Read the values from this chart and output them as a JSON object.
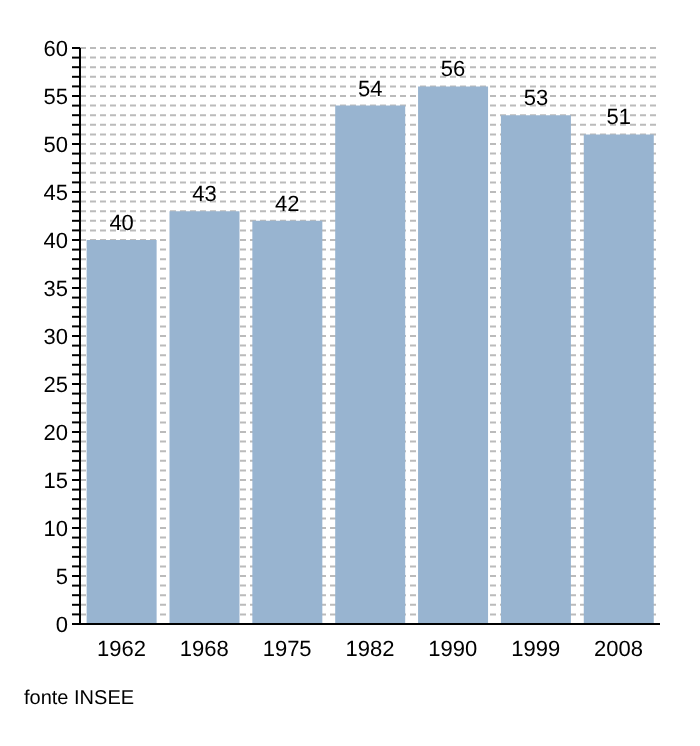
{
  "chart_data": {
    "type": "bar",
    "categories": [
      "1962",
      "1968",
      "1975",
      "1982",
      "1990",
      "1999",
      "2008"
    ],
    "values": [
      40,
      43,
      42,
      54,
      56,
      53,
      51
    ],
    "color": "#98b4d0",
    "data_labels": true,
    "grid": "y",
    "ylim": [
      0,
      60
    ],
    "yticks": [
      0,
      {
        "value": 1,
        "label": null
      },
      {
        "value": 2,
        "label": null
      },
      {
        "value": 3,
        "label": null
      },
      {
        "value": 4,
        "label": null
      },
      5,
      {
        "value": 6,
        "label": null
      },
      {
        "value": 7,
        "label": null
      },
      {
        "value": 8,
        "label": null
      },
      {
        "value": 9,
        "label": null
      },
      10,
      {
        "value": 11,
        "label": null
      },
      {
        "value": 12,
        "label": null
      },
      {
        "value": 13,
        "label": null
      },
      {
        "value": 14,
        "label": null
      },
      15,
      {
        "value": 16,
        "label": null
      },
      {
        "value": 17,
        "label": null
      },
      {
        "value": 18,
        "label": null
      },
      {
        "value": 19,
        "label": null
      },
      20,
      {
        "value": 21,
        "label": null
      },
      {
        "value": 22,
        "label": null
      },
      {
        "value": 23,
        "label": null
      },
      {
        "value": 24,
        "label": null
      },
      25,
      {
        "value": 26,
        "label": null
      },
      {
        "value": 27,
        "label": null
      },
      {
        "value": 28,
        "label": null
      },
      {
        "value": 29,
        "label": null
      },
      30,
      {
        "value": 31,
        "label": null
      },
      {
        "value": 32,
        "label": null
      },
      {
        "value": 33,
        "label": null
      },
      {
        "value": 34,
        "label": null
      },
      35,
      {
        "value": 36,
        "label": null
      },
      {
        "value": 37,
        "label": null
      },
      {
        "value": 38,
        "label": null
      },
      {
        "value": 39,
        "label": null
      },
      40,
      {
        "value": 41,
        "label": null
      },
      {
        "value": 42,
        "label": null
      },
      {
        "value": 43,
        "label": null
      },
      {
        "value": 44,
        "label": null
      },
      45,
      {
        "value": 46,
        "label": null
      },
      {
        "value": 47,
        "label": null
      },
      {
        "value": 48,
        "label": null
      },
      {
        "value": 49,
        "label": null
      },
      50,
      {
        "value": 51,
        "label": null
      },
      {
        "value": 52,
        "label": null
      },
      {
        "value": 53,
        "label": null
      },
      {
        "value": 54,
        "label": null
      },
      55,
      {
        "value": 56,
        "label": null
      },
      {
        "value": 57,
        "label": null
      },
      {
        "value": 58,
        "label": null
      },
      {
        "value": 59,
        "label": null
      },
      60
    ],
    "annotations": [
      "fonte INSEE"
    ]
  }
}
